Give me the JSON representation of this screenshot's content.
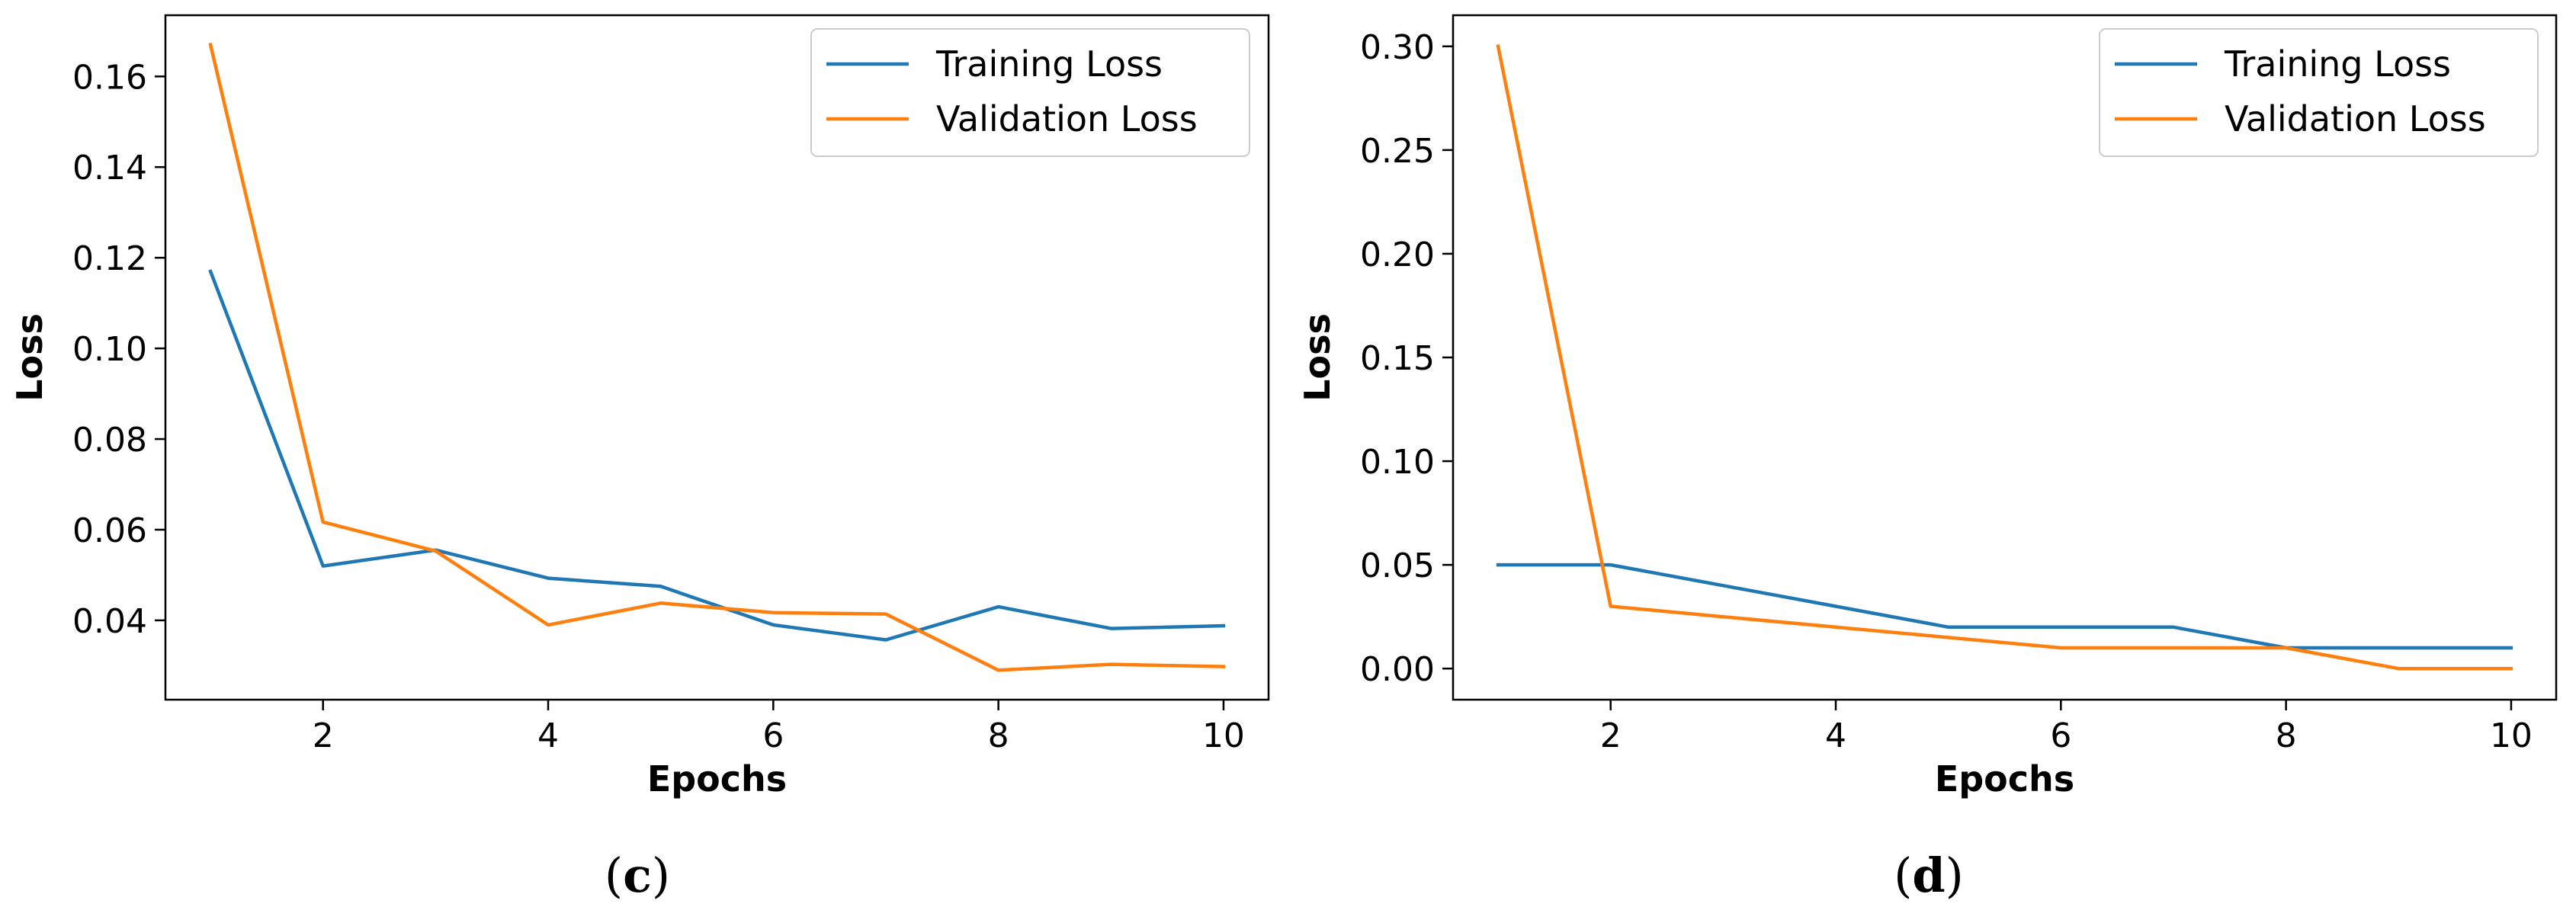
{
  "chart_data": [
    {
      "type": "line",
      "panel_label": "c",
      "xlabel": "Epochs",
      "ylabel": "Loss",
      "xlim": [
        0.6,
        10.4
      ],
      "ylim": [
        0.0225,
        0.1735
      ],
      "xticks": [
        2,
        4,
        6,
        8,
        10
      ],
      "xtick_labels": [
        "2",
        "4",
        "6",
        "8",
        "10"
      ],
      "yticks": [
        0.04,
        0.06,
        0.08,
        0.1,
        0.12,
        0.14,
        0.16
      ],
      "ytick_labels": [
        "0.04",
        "0.06",
        "0.08",
        "0.10",
        "0.12",
        "0.14",
        "0.16"
      ],
      "legend_location": "top-right",
      "x": [
        1,
        2,
        3,
        4,
        5,
        6,
        7,
        8,
        9,
        10
      ],
      "series": [
        {
          "name": "Training Loss",
          "color": "#1f77b4",
          "values": [
            0.117,
            0.052,
            0.0555,
            0.0493,
            0.0475,
            0.039,
            0.0357,
            0.043,
            0.0382,
            0.0388
          ]
        },
        {
          "name": "Validation Loss",
          "color": "#ff7f0e",
          "values": [
            0.167,
            0.0617,
            0.0553,
            0.039,
            0.0438,
            0.0417,
            0.0414,
            0.029,
            0.0303,
            0.0298
          ]
        }
      ]
    },
    {
      "type": "line",
      "panel_label": "d",
      "xlabel": "Epochs",
      "ylabel": "Loss",
      "xlim": [
        0.6,
        10.4
      ],
      "ylim": [
        -0.015,
        0.315
      ],
      "xticks": [
        2,
        4,
        6,
        8,
        10
      ],
      "xtick_labels": [
        "2",
        "4",
        "6",
        "8",
        "10"
      ],
      "yticks": [
        0.0,
        0.05,
        0.1,
        0.15,
        0.2,
        0.25,
        0.3
      ],
      "ytick_labels": [
        "0.00",
        "0.05",
        "0.10",
        "0.15",
        "0.20",
        "0.25",
        "0.30"
      ],
      "legend_location": "top-right",
      "x": [
        1,
        2,
        3,
        4,
        5,
        6,
        7,
        8,
        9,
        10
      ],
      "series": [
        {
          "name": "Training Loss",
          "color": "#1f77b4",
          "values": [
            0.05,
            0.05,
            0.04,
            0.03,
            0.02,
            0.02,
            0.02,
            0.01,
            0.01,
            0.01
          ]
        },
        {
          "name": "Validation Loss",
          "color": "#ff7f0e",
          "values": [
            0.3,
            0.03,
            0.025,
            0.02,
            0.015,
            0.01,
            0.01,
            0.01,
            0.0,
            0.0
          ]
        }
      ]
    }
  ]
}
